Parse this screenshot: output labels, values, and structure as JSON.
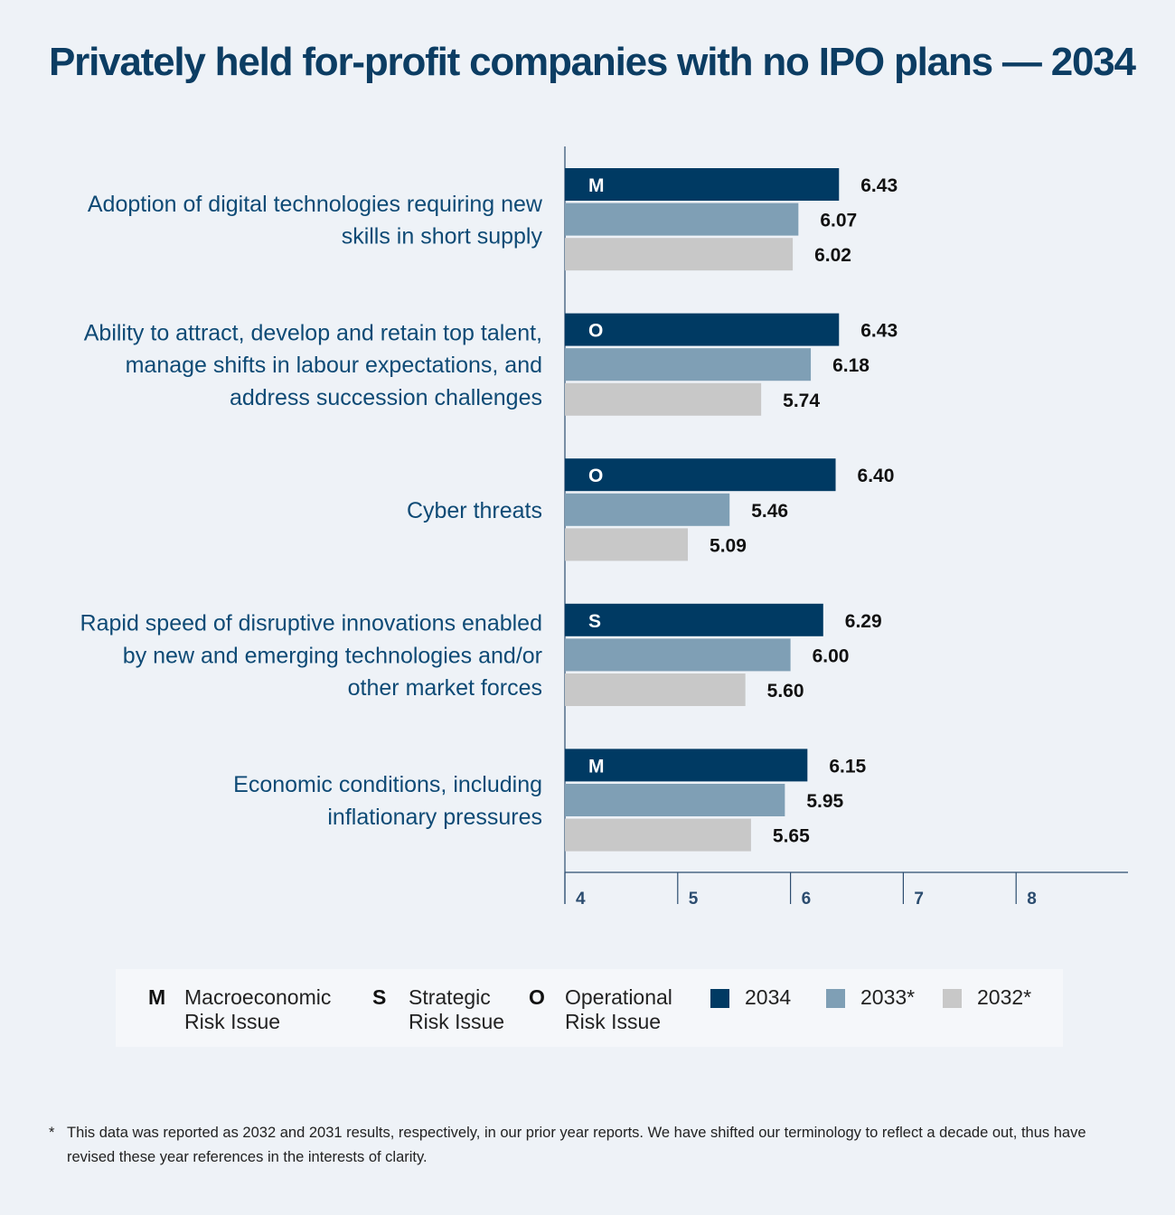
{
  "title": "Privately held for-profit companies with no IPO plans — 2034",
  "chart_data": {
    "type": "bar",
    "orientation": "horizontal",
    "categories": [
      [
        "Adoption of digital technologies requiring new",
        "skills in short supply"
      ],
      [
        "Ability to attract, develop and retain top talent,",
        "manage shifts in labour expectations, and",
        "address succession challenges"
      ],
      [
        "Cyber threats"
      ],
      [
        "Rapid speed of disruptive innovations enabled",
        "by new and emerging technologies and/or",
        "other market forces"
      ],
      [
        "Economic conditions, including",
        "inflationary pressures"
      ]
    ],
    "risk_type": [
      "M",
      "O",
      "O",
      "S",
      "M"
    ],
    "series": [
      {
        "name": "2034",
        "values": [
          6.43,
          6.43,
          6.4,
          6.29,
          6.15
        ],
        "labels": [
          "6.43",
          "6.43",
          "6.40",
          "6.29",
          "6.15"
        ]
      },
      {
        "name": "2033*",
        "values": [
          6.07,
          6.18,
          5.46,
          6.0,
          5.95
        ],
        "labels": [
          "6.07",
          "6.18",
          "5.46",
          "6.00",
          "5.95"
        ]
      },
      {
        "name": "2032*",
        "values": [
          6.02,
          5.74,
          5.09,
          5.6,
          5.65
        ],
        "labels": [
          "6.02",
          "5.74",
          "5.09",
          "5.60",
          "5.65"
        ]
      }
    ],
    "xlim": [
      4,
      9
    ],
    "xticks": [
      4,
      5,
      6,
      7,
      8
    ],
    "grid": false,
    "legend_position": "bottom"
  },
  "colors": {
    "s2034": "#003a63",
    "s2033": "#7f9fb5",
    "s2032": "#c8c8c8",
    "title": "#0c3d63",
    "category_text": "#0e4a75",
    "axis": "#2b4c6f"
  },
  "legend": {
    "types": [
      {
        "letter": "M",
        "line1": "Macroeconomic",
        "line2": "Risk Issue"
      },
      {
        "letter": "S",
        "line1": "Strategic",
        "line2": "Risk Issue"
      },
      {
        "letter": "O",
        "line1": "Operational",
        "line2": "Risk Issue"
      }
    ],
    "years": [
      "2034",
      "2033*",
      "2032*"
    ]
  },
  "footnote": {
    "marker": "*",
    "text": "This data was reported as 2032 and 2031 results, respectively, in our prior year reports. We have shifted our terminology to reflect a decade out, thus have revised these year references in the interests of clarity."
  }
}
